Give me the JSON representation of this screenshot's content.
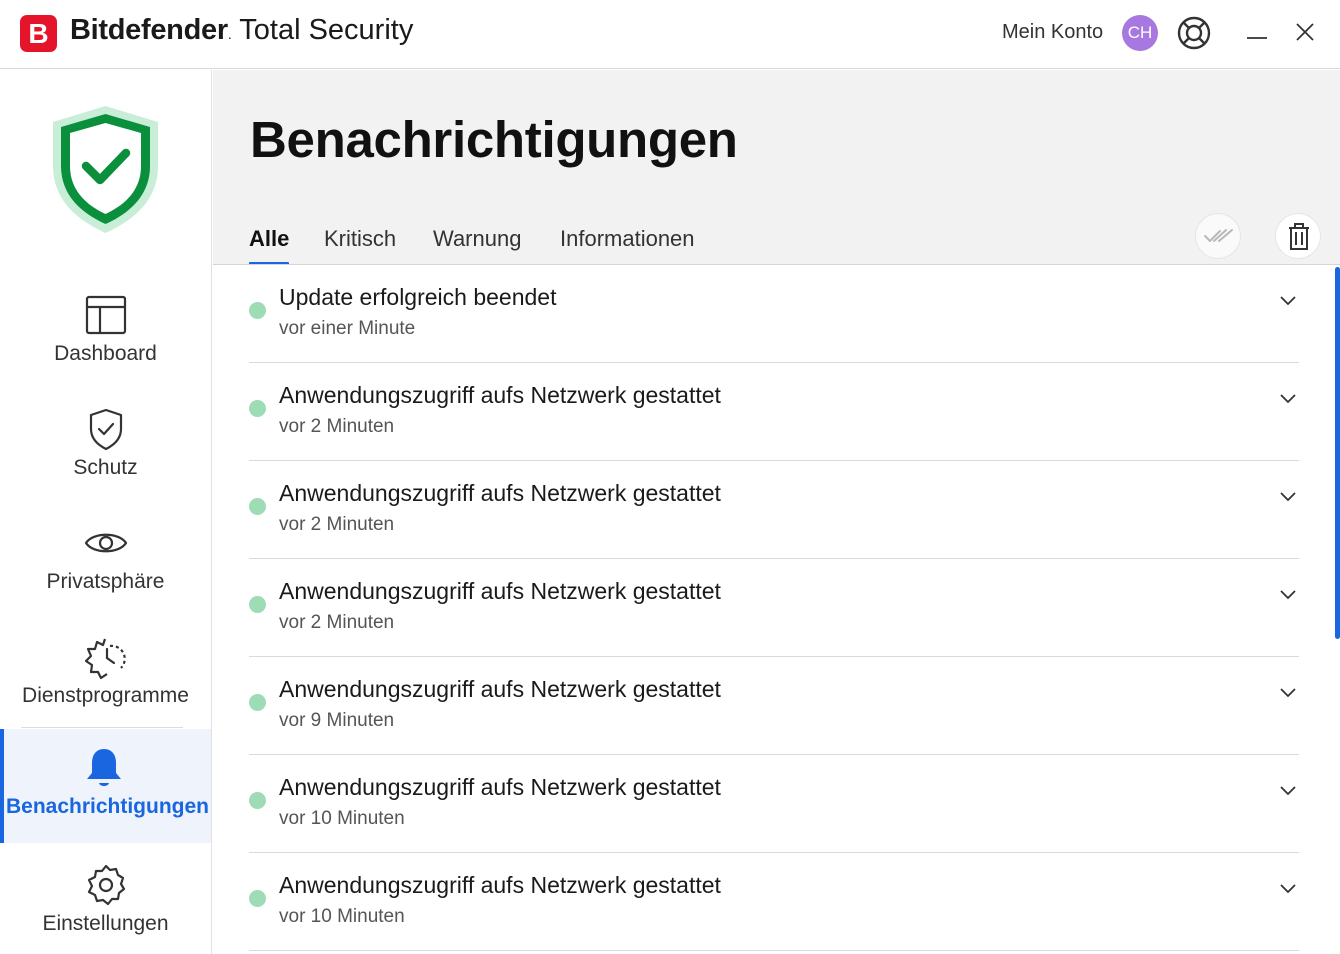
{
  "app": {
    "logo_letter": "B",
    "brand_bold": "Bitdefender",
    "brand_mark": ".",
    "brand_rest": " Total Security",
    "account_label": "Mein Konto",
    "avatar_initials": "CH"
  },
  "colors": {
    "accent": "#1a66e0",
    "brand_red": "#e4142b",
    "status_ok": "#0a8f3c",
    "notification_dot": "#9ddcb5",
    "avatar": "#a678e0"
  },
  "sidebar": {
    "items": [
      {
        "label": "Dashboard",
        "icon": "dashboard-icon"
      },
      {
        "label": "Schutz",
        "icon": "shield-icon"
      },
      {
        "label": "Privatsphäre",
        "icon": "eye-icon"
      },
      {
        "label": "Dienstprogramme",
        "icon": "tools-icon"
      },
      {
        "label": "Benachrichtigungen",
        "icon": "bell-icon",
        "active": true
      },
      {
        "label": "Einstellungen",
        "icon": "gear-icon"
      }
    ]
  },
  "main": {
    "title": "Benachrichtigungen",
    "tabs": [
      {
        "label": "Alle",
        "active": true
      },
      {
        "label": "Kritisch"
      },
      {
        "label": "Warnung"
      },
      {
        "label": "Informationen"
      }
    ],
    "notifications": [
      {
        "title": "Update erfolgreich beendet",
        "time": "vor einer Minute"
      },
      {
        "title": "Anwendungszugriff aufs Netzwerk gestattet",
        "time": "vor 2 Minuten"
      },
      {
        "title": "Anwendungszugriff aufs Netzwerk gestattet",
        "time": "vor 2 Minuten"
      },
      {
        "title": "Anwendungszugriff aufs Netzwerk gestattet",
        "time": "vor 2 Minuten"
      },
      {
        "title": "Anwendungszugriff aufs Netzwerk gestattet",
        "time": "vor 9 Minuten"
      },
      {
        "title": "Anwendungszugriff aufs Netzwerk gestattet",
        "time": "vor 10 Minuten"
      },
      {
        "title": "Anwendungszugriff aufs Netzwerk gestattet",
        "time": "vor 10 Minuten"
      }
    ]
  }
}
